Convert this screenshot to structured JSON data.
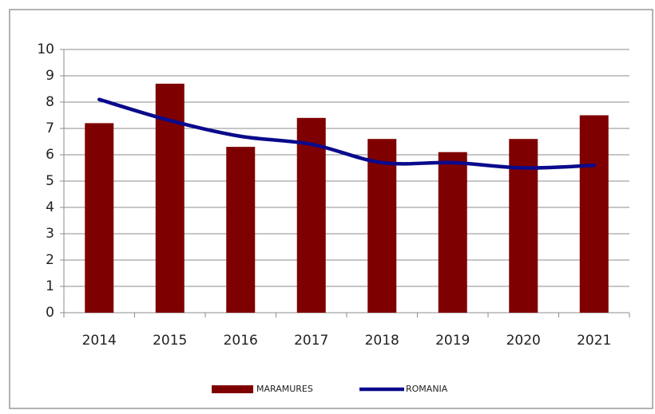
{
  "chart_data": {
    "type": "bar_line",
    "categories": [
      "2014",
      "2015",
      "2016",
      "2017",
      "2018",
      "2019",
      "2020",
      "2021"
    ],
    "series": [
      {
        "name": "MARAMURES",
        "type": "bar",
        "color": "#7f0000",
        "values": [
          7.2,
          8.7,
          6.3,
          7.4,
          6.6,
          6.1,
          6.6,
          7.5
        ]
      },
      {
        "name": "ROMANIA",
        "type": "line",
        "color": "#0a0a8c",
        "values": [
          8.1,
          7.3,
          6.7,
          6.4,
          5.7,
          5.7,
          5.5,
          5.6
        ]
      }
    ],
    "ylim": [
      0,
      10
    ],
    "yticks": [
      0,
      1,
      2,
      3,
      4,
      5,
      6,
      7,
      8,
      9,
      10
    ],
    "grid": true,
    "legend": "bottom"
  }
}
